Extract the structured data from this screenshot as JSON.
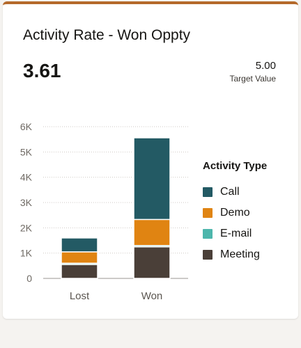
{
  "card": {
    "title": "Activity Rate - Won Oppty",
    "metric_value": "3.61",
    "target_value": "5.00",
    "target_label": "Target Value"
  },
  "colors": {
    "accent_top_border": "#b4692a",
    "Call": "#235a64",
    "Demo": "#e08412",
    "E-mail": "#4db6ac",
    "Meeting": "#4a3f38"
  },
  "chart_data": {
    "type": "bar",
    "stacked": true,
    "categories": [
      "Lost",
      "Won"
    ],
    "series": [
      {
        "name": "Meeting",
        "values": [
          550,
          1250
        ]
      },
      {
        "name": "E-mail",
        "values": [
          50,
          50
        ]
      },
      {
        "name": "Demo",
        "values": [
          450,
          1030
        ]
      },
      {
        "name": "Call",
        "values": [
          550,
          3230
        ]
      }
    ],
    "y_ticks": [
      "0",
      "1K",
      "2K",
      "3K",
      "4K",
      "5K",
      "6K"
    ],
    "ylim": [
      0,
      6000
    ],
    "grid": "horizontal dotted",
    "legend": {
      "title": "Activity Type",
      "position": "right",
      "items": [
        "Call",
        "Demo",
        "E-mail",
        "Meeting"
      ]
    }
  }
}
